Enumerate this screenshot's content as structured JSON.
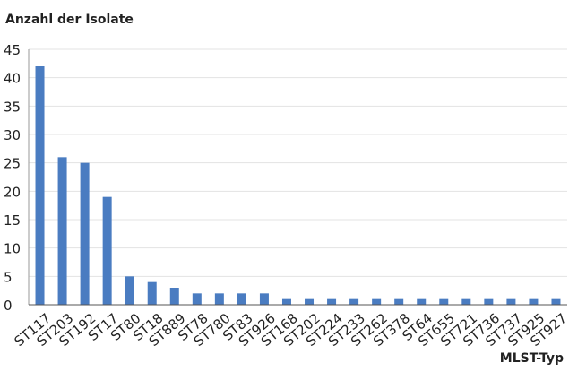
{
  "chart_data": {
    "type": "bar",
    "ylabel": "Anzahl der Isolate",
    "xlabel": "MLST-Typ",
    "ylim": [
      0,
      45
    ],
    "yticks": [
      0,
      5,
      10,
      15,
      20,
      25,
      30,
      35,
      40,
      45
    ],
    "grid": true,
    "bar_color": "#4a7cc1",
    "grid_color": "#e3e3e3",
    "categories": [
      "ST117",
      "ST203",
      "ST192",
      "ST17",
      "ST80",
      "ST18",
      "ST889",
      "ST78",
      "ST780",
      "ST83",
      "ST926",
      "ST168",
      "ST202",
      "ST224",
      "ST233",
      "ST262",
      "ST378",
      "ST64",
      "ST655",
      "ST721",
      "ST736",
      "ST737",
      "ST925",
      "ST927"
    ],
    "values": [
      42,
      26,
      25,
      19,
      5,
      4,
      3,
      2,
      2,
      2,
      2,
      1,
      1,
      1,
      1,
      1,
      1,
      1,
      1,
      1,
      1,
      1,
      1,
      1
    ]
  }
}
